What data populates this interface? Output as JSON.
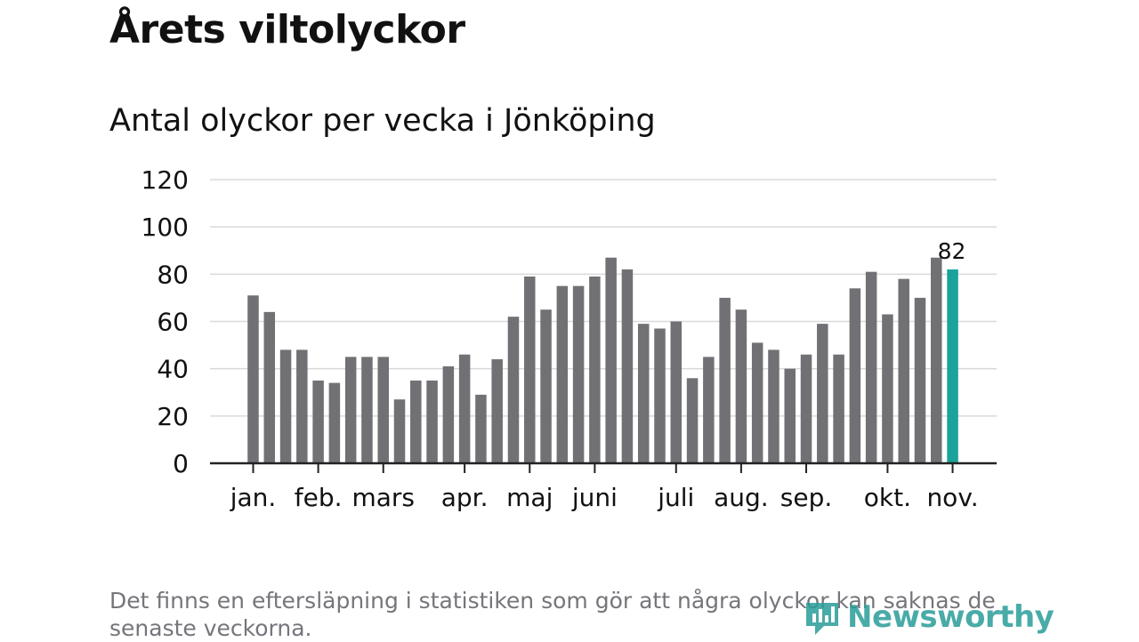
{
  "header": {
    "title": "Årets viltolyckor",
    "subtitle": "Antal olyckor per vecka i Jönköping"
  },
  "footer": {
    "note": "Det finns en eftersläpning i statistiken som gör att några olyckor kan saknas de senaste veckorna.",
    "brand": "Newsworthy",
    "brand_icon": "newsworthy-logo-icon"
  },
  "colors": {
    "bar": "#717075",
    "highlight": "#1aa39a",
    "grid": "#d9d9d9",
    "axis": "#222222",
    "text": "#111111",
    "note": "#75757b",
    "brand": "#2a9d9a"
  },
  "chart_data": {
    "type": "bar",
    "title": "Antal olyckor per vecka i Jönköping",
    "xlabel": "",
    "ylabel": "",
    "ylim": [
      0,
      120
    ],
    "yticks": [
      0,
      20,
      40,
      60,
      80,
      100,
      120
    ],
    "grid": true,
    "values": [
      71,
      64,
      48,
      48,
      35,
      34,
      45,
      45,
      45,
      27,
      35,
      35,
      41,
      46,
      29,
      44,
      62,
      79,
      65,
      75,
      75,
      79,
      87,
      82,
      59,
      57,
      60,
      36,
      45,
      70,
      65,
      51,
      48,
      40,
      46,
      59,
      46,
      74,
      81,
      63,
      78,
      70,
      87,
      82
    ],
    "highlight_index": 43,
    "highlight_label": "82",
    "month_labels": [
      {
        "label": "jan.",
        "week": 0
      },
      {
        "label": "feb.",
        "week": 4
      },
      {
        "label": "mars",
        "week": 8
      },
      {
        "label": "apr.",
        "week": 13
      },
      {
        "label": "maj",
        "week": 17
      },
      {
        "label": "juni",
        "week": 21
      },
      {
        "label": "juli",
        "week": 26
      },
      {
        "label": "aug.",
        "week": 30
      },
      {
        "label": "sep.",
        "week": 34
      },
      {
        "label": "okt.",
        "week": 39
      },
      {
        "label": "nov.",
        "week": 43
      }
    ]
  }
}
